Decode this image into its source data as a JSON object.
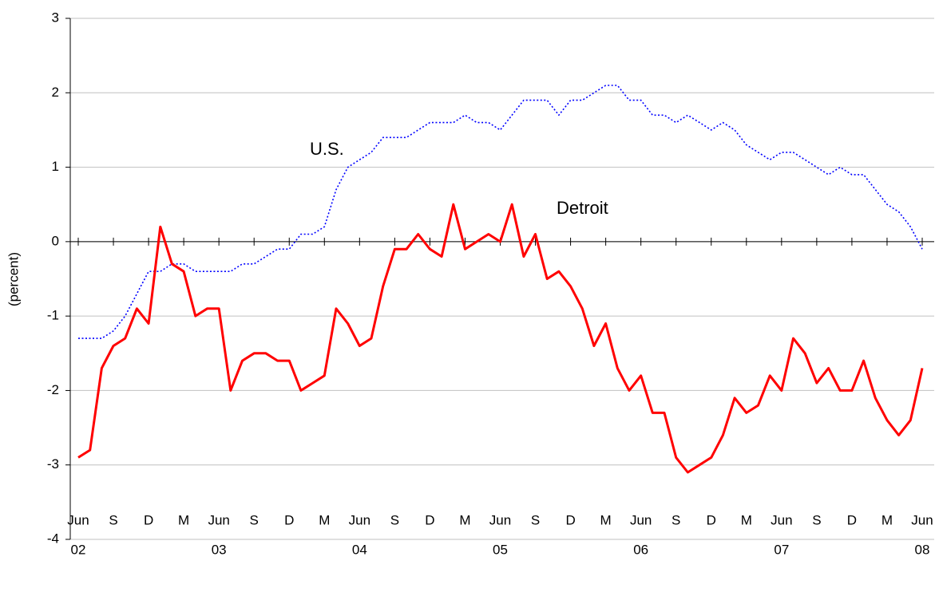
{
  "chart_data": {
    "type": "line",
    "y_label": "(percent)",
    "categories": [
      "Jun",
      null,
      null,
      "S",
      null,
      null,
      "D",
      null,
      null,
      "M",
      null,
      null,
      "Jun",
      null,
      null,
      "S",
      null,
      null,
      "D",
      null,
      null,
      "M",
      null,
      null,
      "Jun",
      null,
      null,
      "S",
      null,
      null,
      "D",
      null,
      null,
      "M",
      null,
      null,
      "Jun",
      null,
      null,
      "S",
      null,
      null,
      "D",
      null,
      null,
      "M",
      null,
      null,
      "Jun",
      null,
      null,
      "S",
      null,
      null,
      "D",
      null,
      null,
      "M",
      null,
      null,
      "Jun",
      null,
      null,
      "S",
      null,
      null,
      "D",
      null,
      null,
      "M",
      null,
      null,
      "Jun"
    ],
    "year_labels": [
      "02",
      "03",
      "04",
      "05",
      "06",
      "07",
      "08"
    ],
    "series": [
      {
        "name": "U.S.",
        "color": "#0000ff",
        "dash": true,
        "values": [
          -1.3,
          -1.3,
          -1.3,
          -1.2,
          -1.0,
          -0.7,
          -0.4,
          -0.4,
          -0.3,
          -0.3,
          -0.4,
          -0.4,
          -0.4,
          -0.4,
          -0.3,
          -0.3,
          -0.2,
          -0.1,
          -0.1,
          0.1,
          0.1,
          0.2,
          0.7,
          1.0,
          1.1,
          1.2,
          1.4,
          1.4,
          1.4,
          1.5,
          1.6,
          1.6,
          1.6,
          1.7,
          1.6,
          1.6,
          1.5,
          1.7,
          1.9,
          1.9,
          1.9,
          1.7,
          1.9,
          1.9,
          2.0,
          2.1,
          2.1,
          1.9,
          1.9,
          1.7,
          1.7,
          1.6,
          1.7,
          1.6,
          1.5,
          1.6,
          1.5,
          1.3,
          1.2,
          1.1,
          1.2,
          1.2,
          1.1,
          1.0,
          0.9,
          1.0,
          0.9,
          0.9,
          0.7,
          0.5,
          0.4,
          0.2,
          -0.1
        ]
      },
      {
        "name": "Detroit",
        "color": "#ff0000",
        "dash": false,
        "values": [
          -2.9,
          -2.8,
          -1.7,
          -1.4,
          -1.3,
          -0.9,
          -1.1,
          0.2,
          -0.3,
          -0.4,
          -1.0,
          -0.9,
          -0.9,
          -2.0,
          -1.6,
          -1.5,
          -1.5,
          -1.6,
          -1.6,
          -2.0,
          -1.9,
          -1.8,
          -0.9,
          -1.1,
          -1.4,
          -1.3,
          -0.6,
          -0.1,
          -0.1,
          0.1,
          -0.1,
          -0.2,
          0.5,
          -0.1,
          0.0,
          0.1,
          0.0,
          0.5,
          -0.2,
          0.1,
          -0.5,
          -0.4,
          -0.6,
          -0.9,
          -1.4,
          -1.1,
          -1.7,
          -2.0,
          -1.8,
          -2.3,
          -2.3,
          -2.9,
          -3.1,
          -3.0,
          -2.9,
          -2.6,
          -2.1,
          -2.3,
          -2.2,
          -1.8,
          -2.0,
          -1.3,
          -1.5,
          -1.9,
          -1.7,
          -2.0,
          -2.0,
          -1.6,
          -2.1,
          -2.4,
          -2.6,
          -2.4,
          -1.7
        ]
      }
    ],
    "ylim": [
      -4,
      3
    ],
    "yticks": [
      -4,
      -3,
      -2,
      -1,
      0,
      1,
      2,
      3
    ],
    "grid": true
  }
}
